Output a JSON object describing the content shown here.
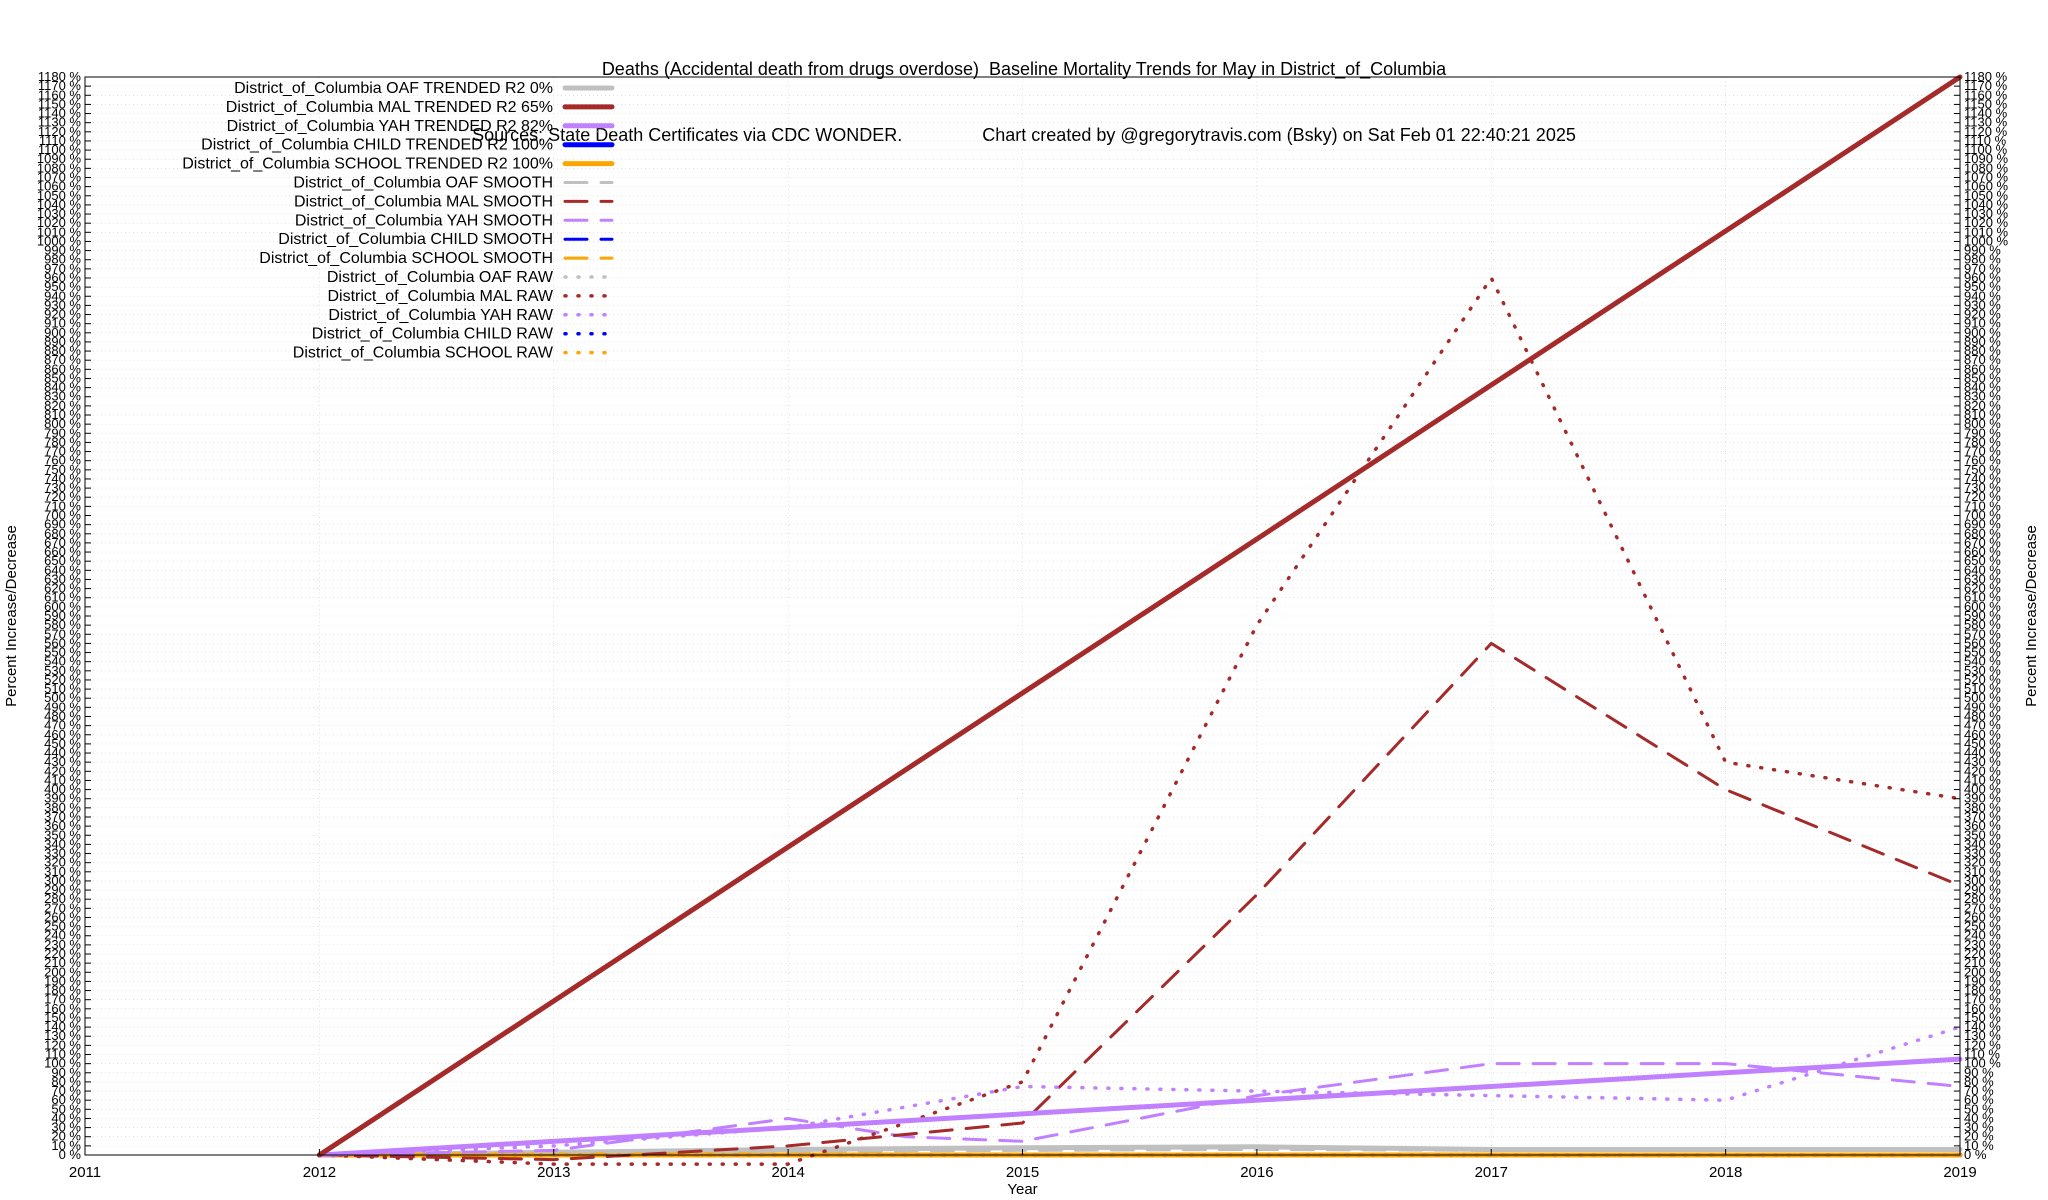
{
  "title": {
    "line1": "Deaths (Accidental death from drugs overdose)  Baseline Mortality Trends for May in District_of_Columbia",
    "line2": "Sources: State Death Certificates via CDC WONDER.                Chart created by @gregorytravis.com (Bsky) on Sat Feb 01 22:40:21 2025"
  },
  "chart_data": {
    "type": "line",
    "xlabel": "Year",
    "ylabel": "Percent Increase/Decrease",
    "xlim": [
      2011,
      2019
    ],
    "ylim": [
      0,
      1180
    ],
    "x_ticks": [
      "2011",
      "2012",
      "2013",
      "2014",
      "2015",
      "2016",
      "2017",
      "2018",
      "2019"
    ],
    "y_tick_step": 10,
    "y_tick_suffix": " %",
    "grid": true,
    "legend_position": "top-left",
    "series": [
      {
        "name": "District_of_Columbia OAF TRENDED R2   0%",
        "color": "#c0c0c0",
        "style": "trended",
        "points": [
          [
            2012,
            0
          ],
          [
            2013,
            3
          ],
          [
            2014,
            6
          ],
          [
            2015,
            8
          ],
          [
            2016,
            9
          ],
          [
            2017,
            6
          ],
          [
            2018,
            6
          ],
          [
            2019,
            6
          ]
        ]
      },
      {
        "name": "District_of_Columbia MAL TRENDED R2  65%",
        "color": "#a52a2a",
        "style": "trended",
        "points": [
          [
            2012,
            0
          ],
          [
            2019,
            1180
          ]
        ]
      },
      {
        "name": "District_of_Columbia YAH TRENDED R2  82%",
        "color": "#c080ff",
        "style": "trended",
        "points": [
          [
            2012,
            0
          ],
          [
            2019,
            105
          ]
        ]
      },
      {
        "name": "District_of_Columbia CHILD TRENDED R2 100%",
        "color": "#0000ff",
        "style": "trended",
        "points": [
          [
            2012,
            0
          ],
          [
            2013,
            0
          ],
          [
            2014,
            0
          ],
          [
            2015,
            0
          ],
          [
            2016,
            0
          ],
          [
            2017,
            0
          ],
          [
            2018,
            0
          ],
          [
            2019,
            0
          ]
        ]
      },
      {
        "name": "District_of_Columbia SCHOOL TRENDED R2 100%",
        "color": "#ffa500",
        "style": "trended",
        "points": [
          [
            2012,
            0
          ],
          [
            2013,
            0
          ],
          [
            2014,
            0
          ],
          [
            2015,
            0
          ],
          [
            2016,
            0
          ],
          [
            2017,
            0
          ],
          [
            2018,
            0
          ],
          [
            2019,
            0
          ]
        ]
      },
      {
        "name": "District_of_Columbia OAF SMOOTH",
        "color": "#c0c0c0",
        "style": "smooth",
        "points": [
          [
            2012,
            0
          ],
          [
            2013,
            2
          ],
          [
            2014,
            4
          ],
          [
            2015,
            5
          ],
          [
            2016,
            6
          ],
          [
            2017,
            5
          ],
          [
            2018,
            5
          ],
          [
            2019,
            5
          ]
        ]
      },
      {
        "name": "District_of_Columbia MAL SMOOTH",
        "color": "#a52a2a",
        "style": "smooth",
        "points": [
          [
            2012,
            0
          ],
          [
            2013,
            -5
          ],
          [
            2014,
            10
          ],
          [
            2015,
            35
          ],
          [
            2016,
            285
          ],
          [
            2017,
            560
          ],
          [
            2018,
            400
          ],
          [
            2019,
            295
          ]
        ]
      },
      {
        "name": "District_of_Columbia YAH SMOOTH",
        "color": "#c080ff",
        "style": "smooth",
        "points": [
          [
            2012,
            0
          ],
          [
            2013,
            5
          ],
          [
            2014,
            40
          ],
          [
            2014.5,
            20
          ],
          [
            2015,
            15
          ],
          [
            2016,
            65
          ],
          [
            2017,
            100
          ],
          [
            2018,
            100
          ],
          [
            2019,
            75
          ]
        ]
      },
      {
        "name": "District_of_Columbia CHILD SMOOTH",
        "color": "#0000ff",
        "style": "smooth",
        "points": [
          [
            2012,
            0
          ],
          [
            2019,
            0
          ]
        ]
      },
      {
        "name": "District_of_Columbia SCHOOL SMOOTH",
        "color": "#ffa500",
        "style": "smooth",
        "points": [
          [
            2012,
            0
          ],
          [
            2019,
            0
          ]
        ]
      },
      {
        "name": "District_of_Columbia OAF RAW",
        "color": "#c0c0c0",
        "style": "raw",
        "points": [
          [
            2012,
            0
          ],
          [
            2013,
            3
          ],
          [
            2014,
            6
          ],
          [
            2015,
            8
          ],
          [
            2016,
            9
          ],
          [
            2017,
            6
          ],
          [
            2018,
            6
          ],
          [
            2019,
            6
          ]
        ]
      },
      {
        "name": "District_of_Columbia MAL RAW",
        "color": "#a52a2a",
        "style": "raw",
        "points": [
          [
            2012,
            0
          ],
          [
            2013,
            -10
          ],
          [
            2014,
            -10
          ],
          [
            2015,
            80
          ],
          [
            2016,
            580
          ],
          [
            2017,
            960
          ],
          [
            2018,
            430
          ],
          [
            2019,
            390
          ]
        ]
      },
      {
        "name": "District_of_Columbia YAH RAW",
        "color": "#c080ff",
        "style": "raw",
        "points": [
          [
            2012,
            0
          ],
          [
            2013,
            10
          ],
          [
            2014,
            30
          ],
          [
            2015,
            75
          ],
          [
            2016,
            70
          ],
          [
            2017,
            65
          ],
          [
            2018,
            60
          ],
          [
            2019,
            140
          ]
        ]
      },
      {
        "name": "District_of_Columbia CHILD RAW",
        "color": "#0000ff",
        "style": "raw",
        "points": [
          [
            2012,
            0
          ],
          [
            2019,
            0
          ]
        ]
      },
      {
        "name": "District_of_Columbia SCHOOL RAW",
        "color": "#ffa500",
        "style": "raw",
        "points": [
          [
            2012,
            0
          ],
          [
            2019,
            0
          ]
        ]
      }
    ]
  }
}
